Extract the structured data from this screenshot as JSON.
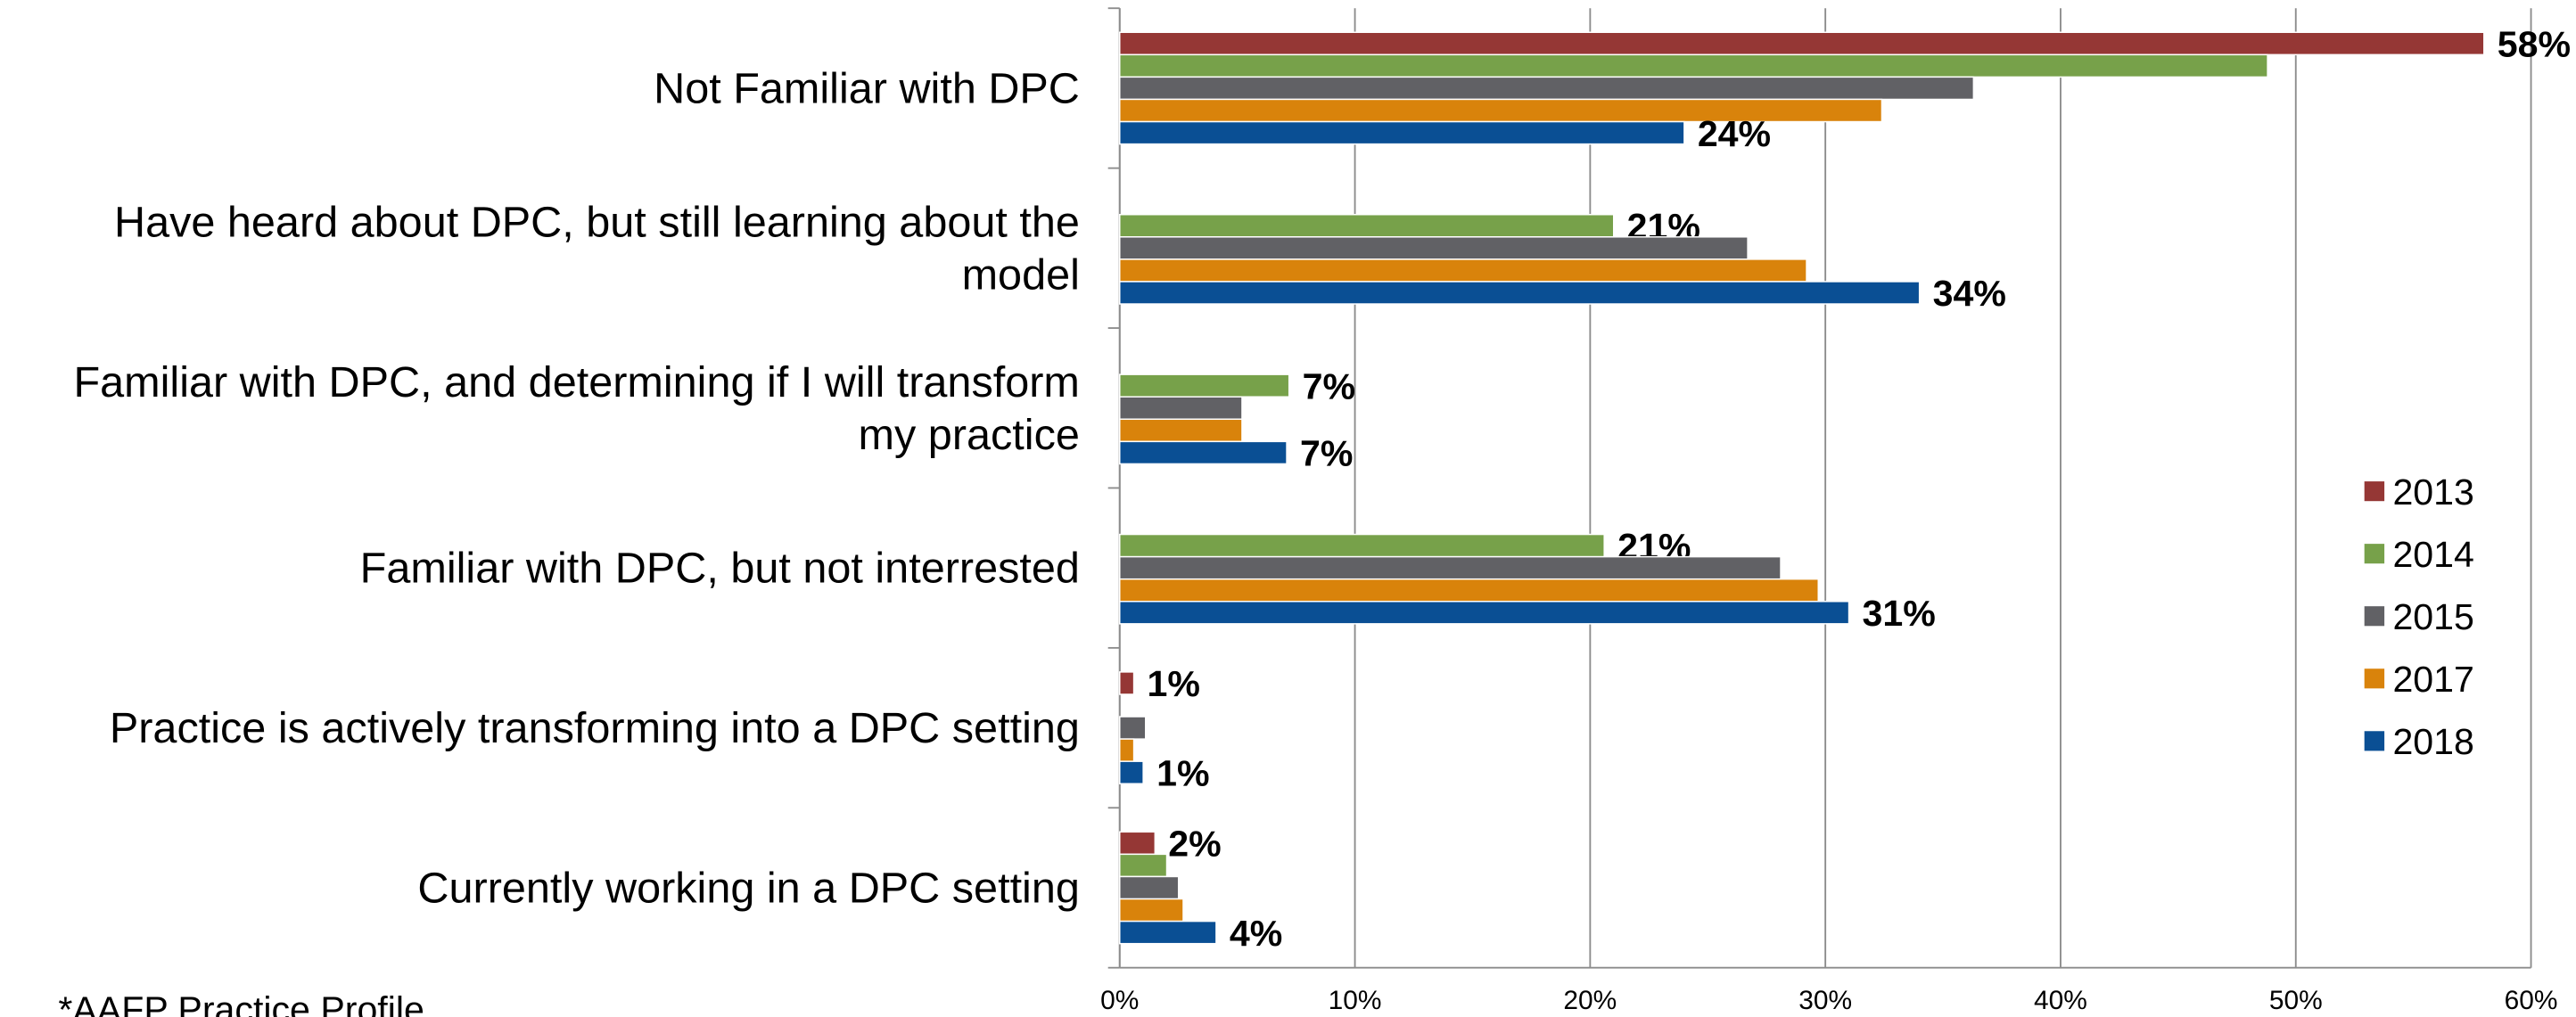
{
  "chart_data": {
    "type": "hbar",
    "categories": [
      "Not Familiar with DPC",
      "Have heard about DPC, but still learning about the model",
      "Familiar with DPC, and determining if I will transform my practice",
      "Familiar with DPC, but not interrested",
      "Practice is actively transforming into a DPC setting",
      "Currently working in a DPC setting"
    ],
    "series": [
      {
        "name": "2013",
        "color": "#953735",
        "values": [
          58,
          null,
          null,
          null,
          0.6,
          1.5
        ],
        "value_labels": [
          "58%",
          null,
          null,
          null,
          "1%",
          "2%"
        ]
      },
      {
        "name": "2014",
        "color": "#77a14a",
        "values": [
          48.8,
          21,
          7.2,
          20.6,
          null,
          2.0
        ],
        "value_labels": [
          null,
          "21%",
          "7%",
          "21%",
          null,
          null
        ]
      },
      {
        "name": "2015",
        "color": "#616165",
        "values": [
          36.3,
          26.7,
          5.2,
          28.1,
          1.1,
          2.5
        ]
      },
      {
        "name": "2017",
        "color": "#d9830b",
        "values": [
          32.4,
          29.2,
          5.2,
          29.7,
          0.6,
          2.7
        ]
      },
      {
        "name": "2018",
        "color": "#0a4f94",
        "values": [
          24,
          34,
          7.1,
          31,
          1.0,
          4.1
        ],
        "value_labels": [
          "24%",
          "34%",
          "7%",
          "31%",
          "1%",
          "4%"
        ]
      }
    ],
    "xlim": [
      0,
      60
    ],
    "xticks": [
      {
        "value": 0,
        "label": "0%"
      },
      {
        "value": 10,
        "label": "10%"
      },
      {
        "value": 20,
        "label": "20%"
      },
      {
        "value": 30,
        "label": "30%"
      },
      {
        "value": 40,
        "label": "40%"
      },
      {
        "value": 50,
        "label": "50%"
      },
      {
        "value": 60,
        "label": "60%"
      }
    ],
    "grid": true,
    "legend": "right",
    "note": "*AAFP Practice Profile"
  }
}
